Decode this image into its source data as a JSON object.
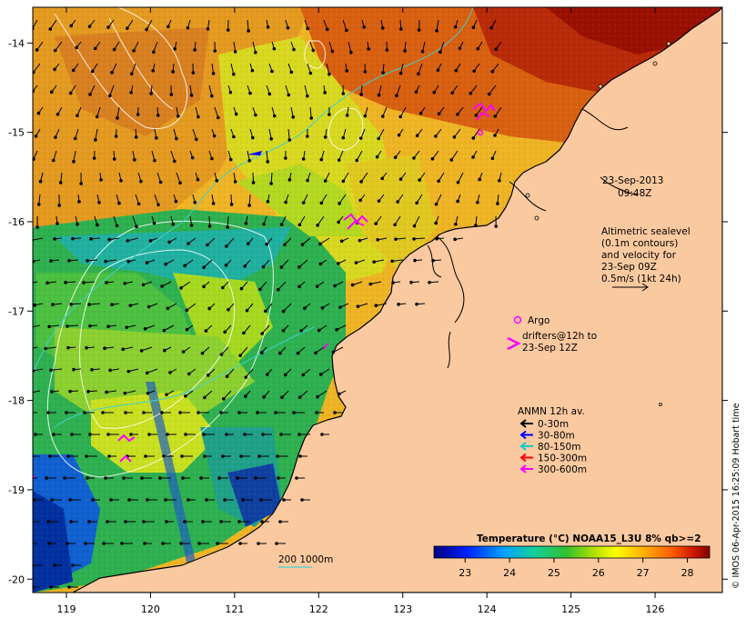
{
  "map": {
    "x_ticks": [
      "119",
      "120",
      "121",
      "122",
      "123",
      "124",
      "125",
      "126"
    ],
    "y_ticks": [
      "-14",
      "-15",
      "-16",
      "-17",
      "-18",
      "-19",
      "-20"
    ],
    "timestamp_date": "23-Sep-2013",
    "timestamp_time": "09:48Z",
    "altimetry_lines": [
      "Altimetric sealevel",
      "(0.1m contours)",
      "and velocity for",
      "23-Sep 09Z",
      "0.5m/s (1kt 24h)"
    ],
    "argo_label": "Argo",
    "drifters_lines": [
      "drifters@12h to",
      "23-Sep 12Z"
    ],
    "anmn_title": "ANMN 12h av.",
    "anmn_legend": [
      {
        "label": "0-30m",
        "color": "#000000"
      },
      {
        "label": "30-80m",
        "color": "#0000ff"
      },
      {
        "label": "80-150m",
        "color": "#00cccc"
      },
      {
        "label": "150-300m",
        "color": "#ff0000"
      },
      {
        "label": "300-600m",
        "color": "#ff00ff"
      }
    ],
    "bathy_label": "200  1000m",
    "land_color": "#fbc9a0",
    "argo_color": "#ff00ff",
    "drifter_color": "#ff00ff",
    "credit": "© IMOS 06-Apr-2015 16:25:09 Hobart time"
  },
  "colorbar": {
    "title": "Temperature (°C) NOAA15_L3U 8% qb>=2",
    "ticks": [
      "23",
      "24",
      "25",
      "26",
      "27",
      "28"
    ]
  }
}
